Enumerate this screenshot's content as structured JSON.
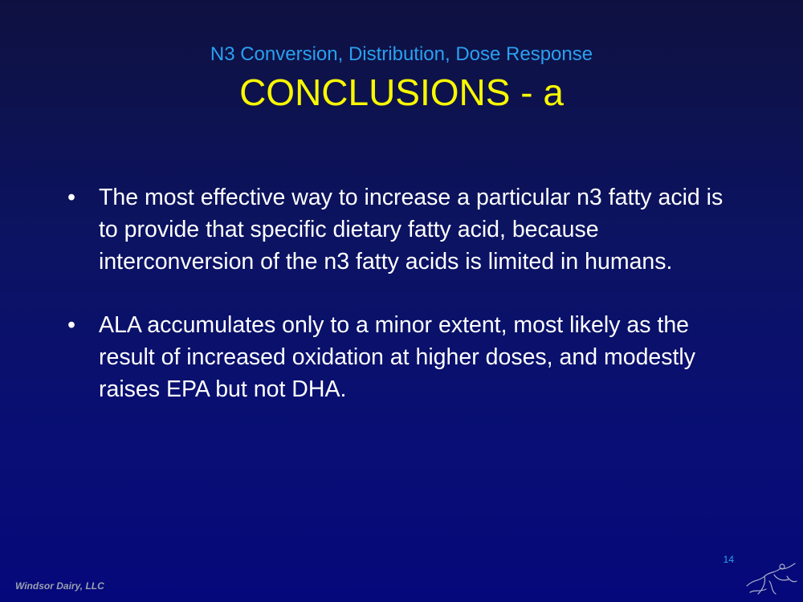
{
  "slide": {
    "subtitle": "N3 Conversion, Distribution, Dose Response",
    "title": "CONCLUSIONS - a",
    "bullet_symbol": "•",
    "bullets": [
      "The most effective way to increase a particular n3 fatty acid is to provide that specific dietary fatty acid, because interconversion of the n3 fatty acids is limited in humans.",
      "ALA accumulates only to a minor extent, most likely as the result of increased oxidation at higher doses, and modestly raises EPA but not DHA."
    ],
    "footer_text": "Windsor Dairy, LLC",
    "page_number": "14"
  },
  "icons": {
    "logo": "sketch-logo-icon"
  },
  "colors": {
    "background_top": "#0e1140",
    "background_bottom": "#05087a",
    "subtitle": "#2aa0f0",
    "title": "#f8f800",
    "body_text": "#ffffff",
    "footer_text": "#9aa0b0"
  }
}
